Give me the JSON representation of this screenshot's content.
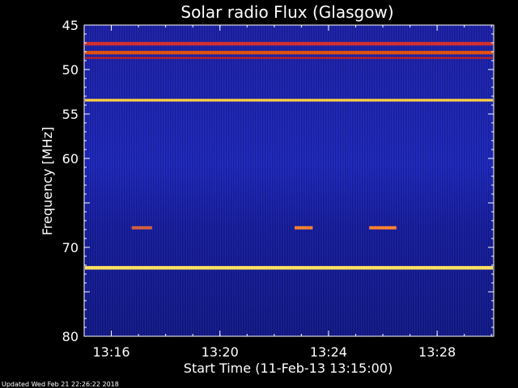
{
  "footer_text": "Updated Wed Feb 21 22:26:22 2018",
  "chart_data": {
    "type": "heatmap",
    "title": "Solar radio Flux (Glasgow)",
    "xlabel": "Start Time (11-Feb-13 13:15:00)",
    "ylabel": "Frequency [MHz]",
    "x_start_minutes": 13.6,
    "x_end_minutes": 15.0,
    "xlim": [
      "13:15:00",
      "13:30:05"
    ],
    "ylim": [
      45,
      80
    ],
    "y_inverted": true,
    "xticks": [
      "13:16",
      "13:20",
      "13:24",
      "13:28"
    ],
    "yticks": [
      45,
      50,
      55,
      60,
      65,
      70,
      75,
      80
    ],
    "ytick_labels": [
      "45",
      "50",
      "55",
      "60",
      "",
      "70",
      "",
      "80"
    ],
    "colormap": [
      "#000070",
      "#1a1aa8",
      "#2f3fd8",
      "#c00000",
      "#ff4020",
      "#ffe040"
    ],
    "background_color": "#1c22a8",
    "emission_bands": [
      {
        "freq_start_mhz": 46.9,
        "freq_end_mhz": 47.3,
        "intensity": "medium",
        "color": "#d03030"
      },
      {
        "freq_start_mhz": 47.9,
        "freq_end_mhz": 48.3,
        "intensity": "medium-high",
        "color": "#e05010"
      },
      {
        "freq_start_mhz": 48.6,
        "freq_end_mhz": 48.8,
        "intensity": "medium",
        "color": "#c02020"
      },
      {
        "freq_start_mhz": 53.3,
        "freq_end_mhz": 53.6,
        "intensity": "high",
        "color": "#ffd040"
      },
      {
        "freq_start_mhz": 72.1,
        "freq_end_mhz": 72.5,
        "intensity": "high",
        "color": "#ffe060"
      }
    ],
    "sporadic_bursts": [
      {
        "freq_mhz": 67.8,
        "time_start": "13:22:45",
        "time_end": "13:23:25",
        "color": "#ff8030"
      },
      {
        "freq_mhz": 67.8,
        "time_start": "13:25:30",
        "time_end": "13:26:30",
        "color": "#ff8030"
      },
      {
        "freq_mhz": 67.8,
        "time_start": "13:16:45",
        "time_end": "13:17:30",
        "color": "#d06040"
      }
    ]
  }
}
